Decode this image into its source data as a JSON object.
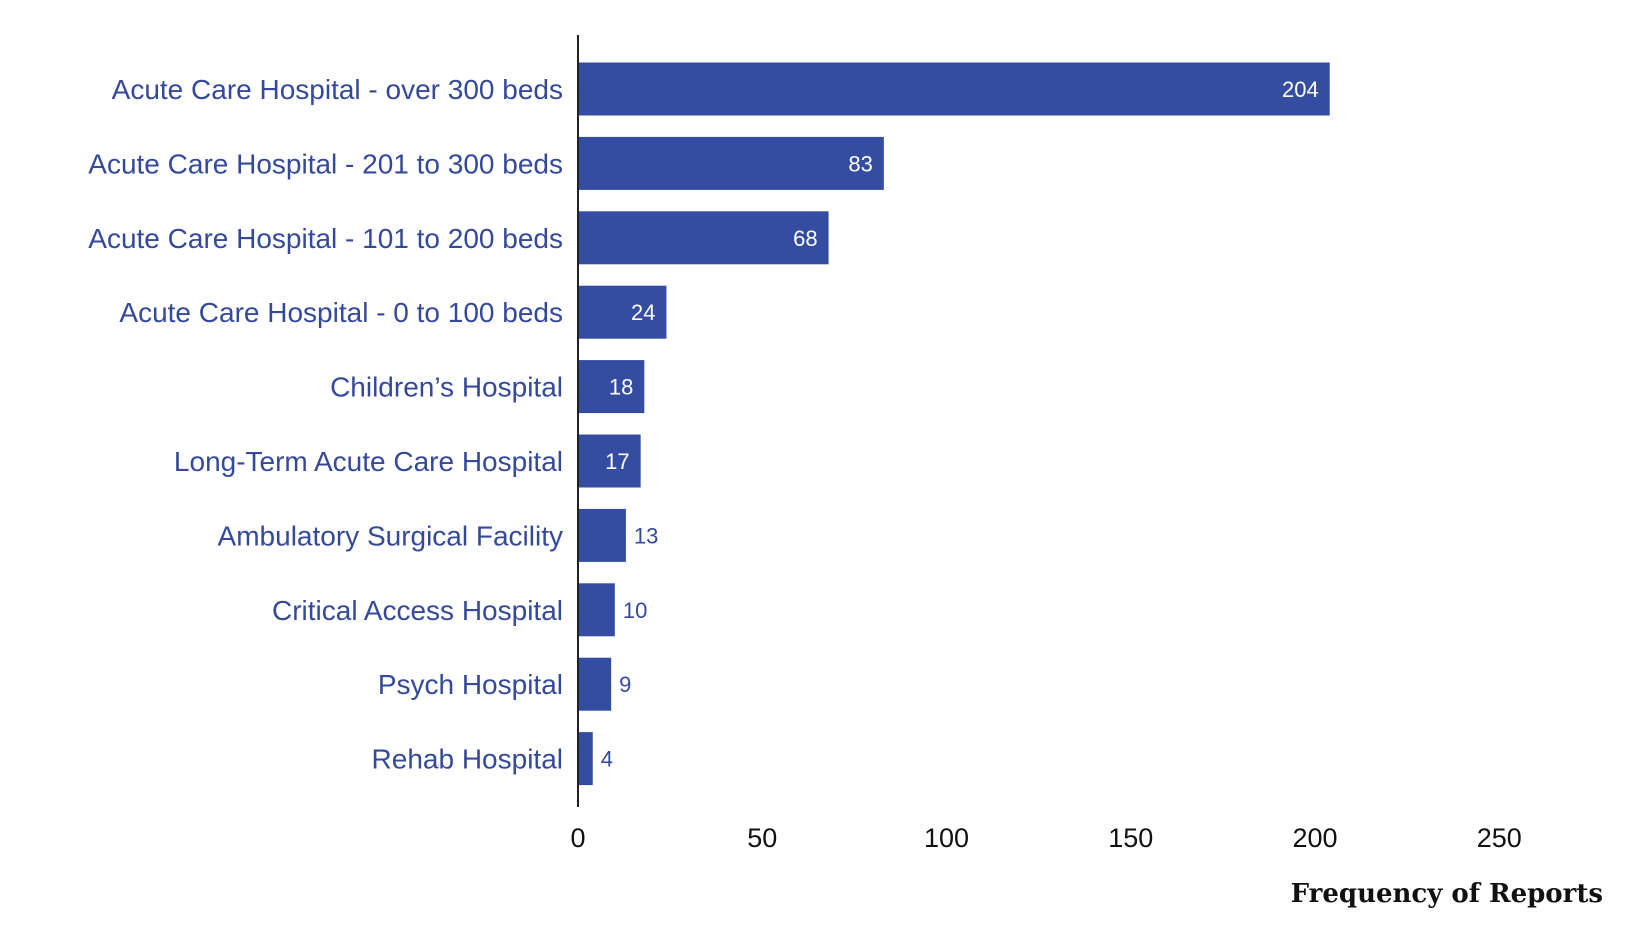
{
  "chart_data": {
    "type": "bar",
    "orientation": "horizontal",
    "categories": [
      "Acute Care Hospital - over 300 beds",
      "Acute Care Hospital - 201 to 300 beds",
      "Acute Care Hospital - 101 to 200 beds",
      "Acute Care Hospital - 0 to 100 beds",
      "Children’s Hospital",
      "Long-Term Acute Care Hospital",
      "Ambulatory Surgical Facility",
      "Critical Access Hospital",
      "Psych Hospital",
      "Rehab Hospital"
    ],
    "values": [
      204,
      83,
      68,
      24,
      18,
      17,
      13,
      10,
      9,
      4
    ],
    "value_labels": [
      "204",
      "83",
      "68",
      "24",
      "18",
      "17",
      "13",
      "10",
      "9",
      "4"
    ],
    "xlabel": "Frequency of Reports",
    "ylabel": "",
    "xlim": [
      0,
      250
    ],
    "xticks": [
      0,
      50,
      100,
      150,
      200,
      250
    ],
    "xtick_labels": [
      "0",
      "50",
      "100",
      "150",
      "200",
      "250"
    ],
    "grid": false,
    "legend": "none",
    "colors": {
      "bar": "#354da0",
      "category_text": "#34499a",
      "axis_text": "#111111",
      "axis_line": "#222222"
    }
  }
}
